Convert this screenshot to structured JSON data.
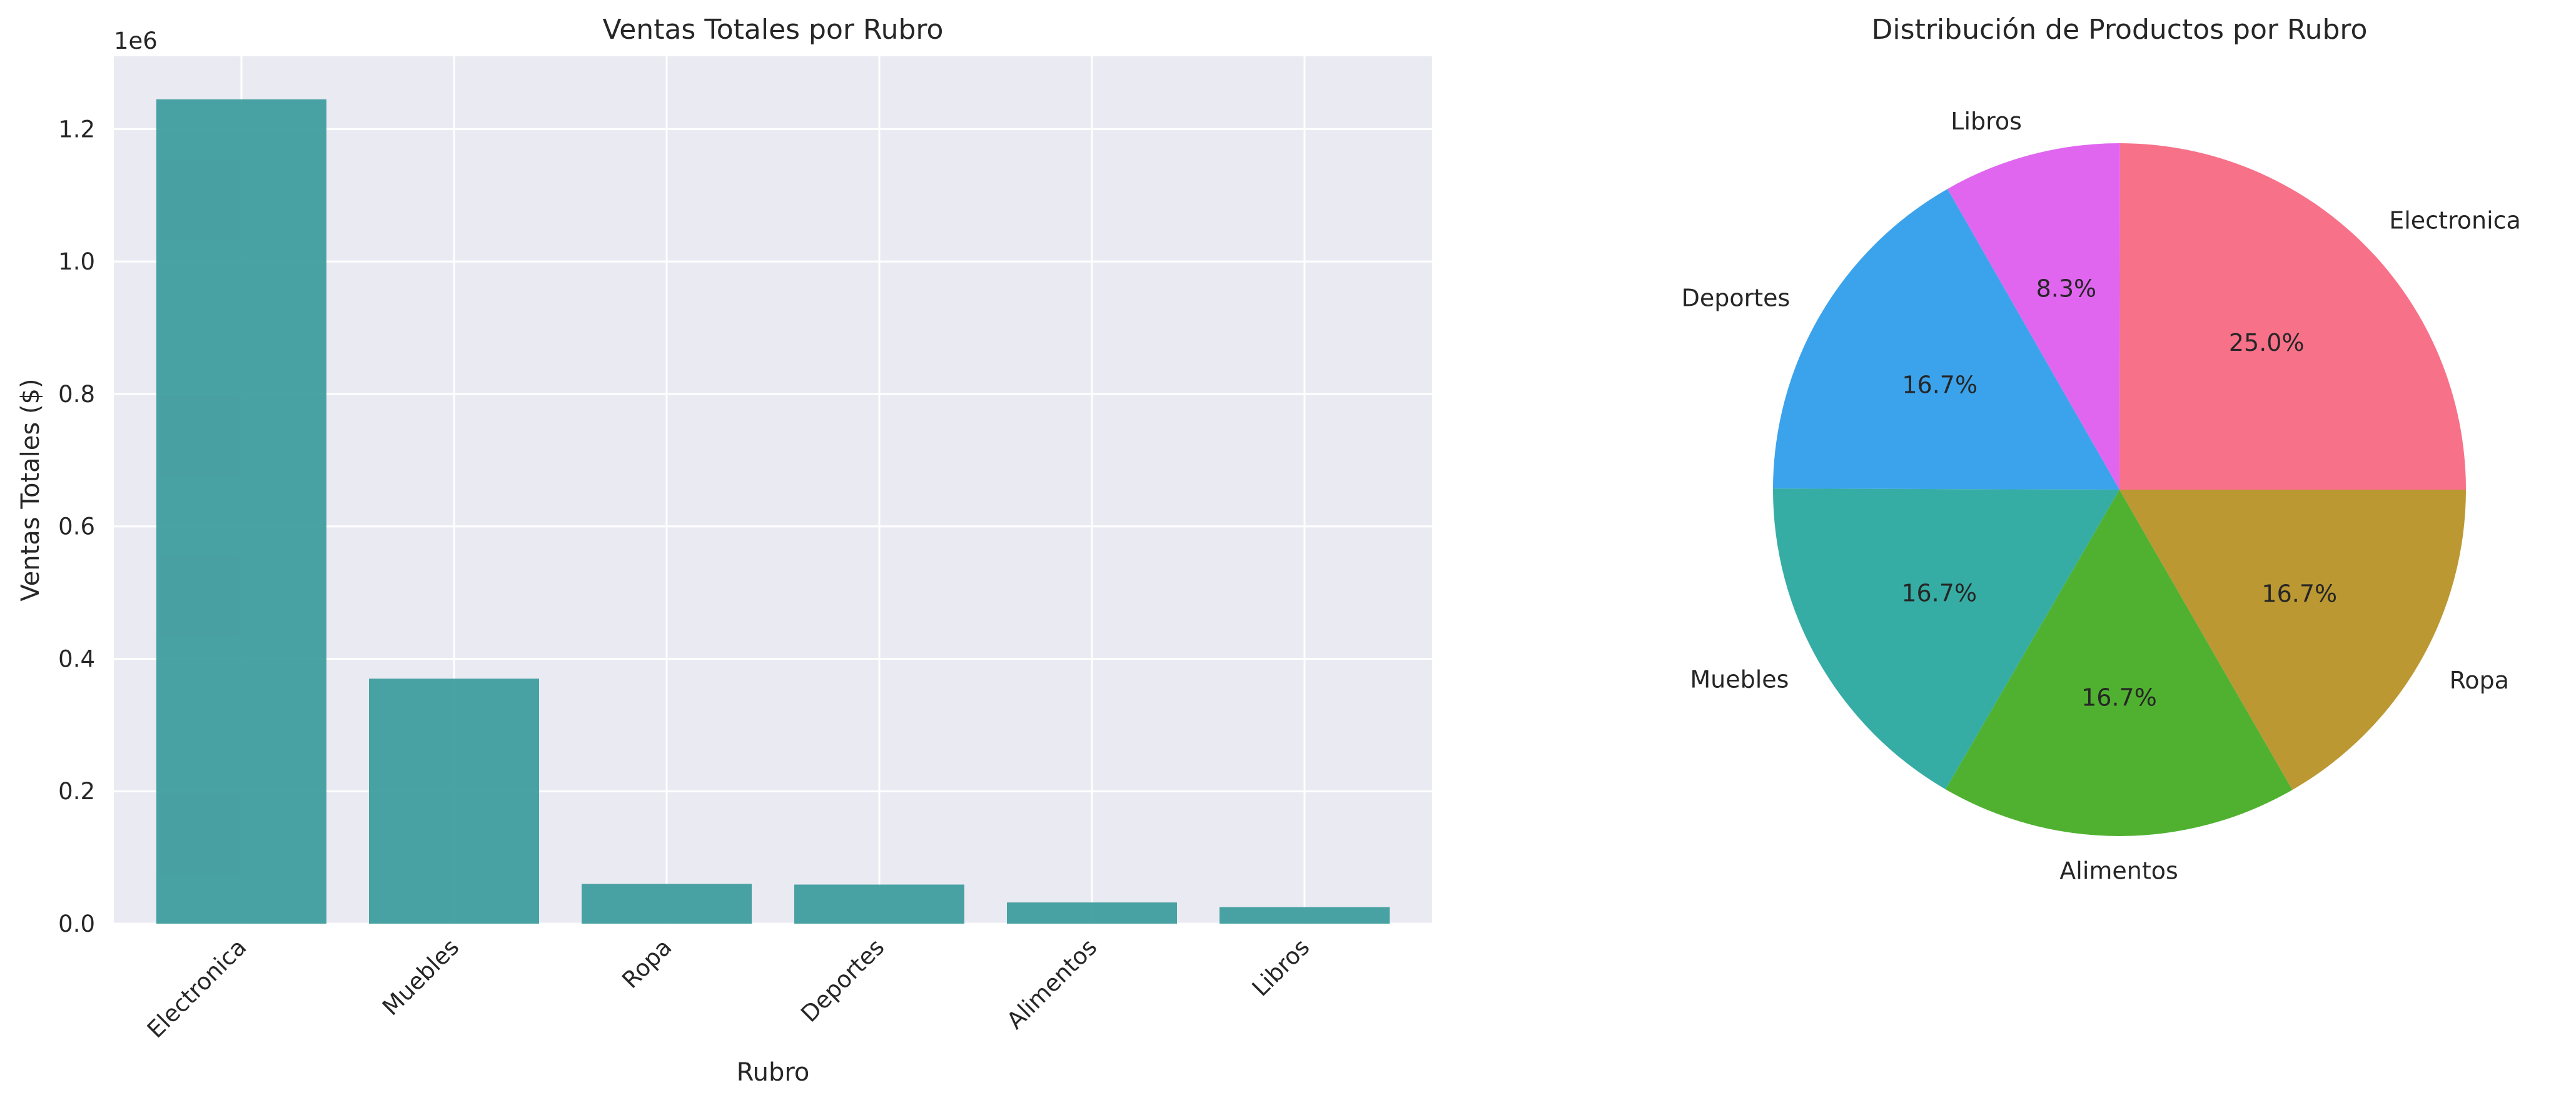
{
  "chart_data": [
    {
      "type": "bar",
      "title": "Ventas Totales por Rubro",
      "xlabel": "Rubro",
      "ylabel": "Ventas Totales ($)",
      "y_offset_label": "1e6",
      "categories": [
        "Electronica",
        "Muebles",
        "Ropa",
        "Deportes",
        "Alimentos",
        "Libros"
      ],
      "values": [
        1245000,
        370000,
        60000,
        59000,
        32000,
        25000
      ],
      "ylim": [
        0,
        1310000
      ],
      "yticks": [
        0,
        200000,
        400000,
        600000,
        800000,
        1000000,
        1200000
      ],
      "ytick_labels": [
        "0.0",
        "0.2",
        "0.4",
        "0.6",
        "0.8",
        "1.0",
        "1.2"
      ],
      "grid": true,
      "bar_color": "#3a9a9b",
      "background_color": "#eaeaf2"
    },
    {
      "type": "pie",
      "title": "Distribución de Productos por Rubro",
      "slices": [
        {
          "label": "Electronica",
          "value": 25.0,
          "pct_label": "25.0%",
          "color": "#f77189"
        },
        {
          "label": "Libros",
          "value": 8.3,
          "pct_label": "8.3%",
          "color": "#e066f0"
        },
        {
          "label": "Deportes",
          "value": 16.7,
          "pct_label": "16.7%",
          "color": "#3ba3ec"
        },
        {
          "label": "Muebles",
          "value": 16.7,
          "pct_label": "16.7%",
          "color": "#36ada4"
        },
        {
          "label": "Alimentos",
          "value": 16.7,
          "pct_label": "16.7%",
          "color": "#50b131"
        },
        {
          "label": "Ropa",
          "value": 16.7,
          "pct_label": "16.7%",
          "color": "#bb9832"
        }
      ]
    }
  ]
}
